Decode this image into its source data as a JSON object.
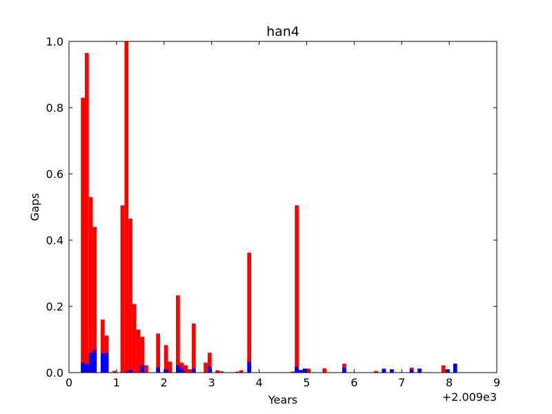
{
  "chart_data": {
    "type": "bar",
    "title": "han4",
    "xlabel": "Years",
    "ylabel": "Gaps",
    "x_offset_label": "+2.009e3",
    "x": [
      0.25,
      0.333,
      0.417,
      0.5,
      0.667,
      0.75,
      0.917,
      1.083,
      1.167,
      1.25,
      1.333,
      1.417,
      1.5,
      1.583,
      1.833,
      2.0,
      2.083,
      2.25,
      2.333,
      2.417,
      2.5,
      2.583,
      2.833,
      2.917,
      3.083,
      3.167,
      3.5,
      3.583,
      3.75,
      4.667,
      4.75,
      4.833,
      4.917,
      5.0,
      5.333,
      5.75,
      6.417,
      6.583,
      6.75,
      7.167,
      7.333,
      7.833,
      7.917,
      8.083
    ],
    "series": [
      {
        "color": "#ff0000",
        "values": [
          0.83,
          0.965,
          0.53,
          0.44,
          0.16,
          0.112,
          0.005,
          0.505,
          1.0,
          0.465,
          0.207,
          0.13,
          0.108,
          0.022,
          0.118,
          0.083,
          0.033,
          0.233,
          0.03,
          0.022,
          0.01,
          0.148,
          0.03,
          0.06,
          0.007,
          0.004,
          0.003,
          0.007,
          0.362,
          0.003,
          0.505,
          0.005,
          0.012,
          0.012,
          0.013,
          0.027,
          0.005,
          0,
          0,
          0.015,
          0,
          0.022,
          0,
          0
        ]
      },
      {
        "color": "#0000ff",
        "values": [
          0.03,
          0.025,
          0.06,
          0.068,
          0.058,
          0.06,
          0,
          0,
          0.003,
          0.008,
          0,
          0,
          0.022,
          0,
          0.015,
          0.01,
          0,
          0.022,
          0.012,
          0,
          0,
          0.012,
          0,
          0.018,
          0,
          0,
          0,
          0,
          0.033,
          0,
          0.018,
          0.008,
          0.012,
          0,
          0,
          0.015,
          0,
          0.012,
          0.01,
          0.01,
          0.012,
          0,
          0.01,
          0.027
        ]
      }
    ],
    "xlim": [
      0,
      9
    ],
    "xticks": [
      0,
      1,
      2,
      3,
      4,
      5,
      6,
      7,
      8,
      9
    ],
    "ylim": [
      0,
      1
    ],
    "yticks": [
      {
        "value": 0,
        "label": "0.0"
      },
      {
        "value": 0.2,
        "label": "0.2"
      },
      {
        "value": 0.4,
        "label": "0.4"
      },
      {
        "value": 0.6,
        "label": "0.6"
      },
      {
        "value": 0.8,
        "label": "0.8"
      },
      {
        "value": 1,
        "label": "1.0"
      }
    ]
  }
}
